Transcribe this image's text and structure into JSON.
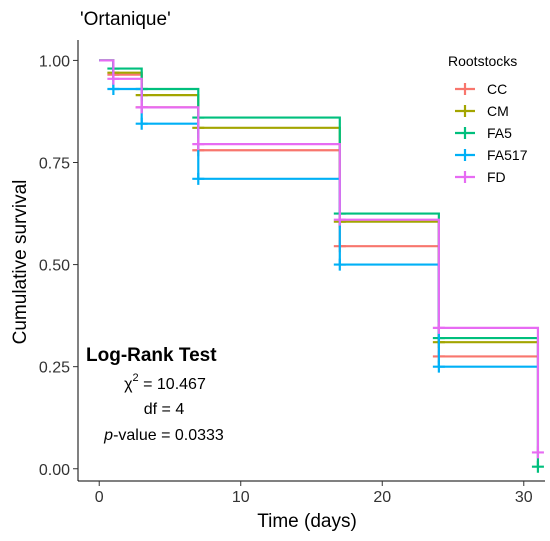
{
  "chart_data": {
    "type": "line",
    "title": "'Ortanique'",
    "xlabel": "Time (days)",
    "ylabel": "Cumulative survival",
    "xlim": [
      -1.5,
      31.5
    ],
    "ylim": [
      -0.03,
      1.05
    ],
    "x_ticks": [
      0,
      10,
      20,
      30
    ],
    "x_tick_labels": [
      "0",
      "10",
      "20",
      "30"
    ],
    "y_ticks": [
      0,
      0.25,
      0.5,
      0.75,
      1.0
    ],
    "y_tick_labels": [
      "0.00",
      "0.25",
      "0.50",
      "0.75",
      "1.00"
    ],
    "grid": false,
    "legend": {
      "title": "Rootstocks",
      "position": "top-right"
    },
    "series": [
      {
        "name": "CC",
        "color": "#F8766D",
        "steps": [
          [
            0,
            1.0
          ],
          [
            1,
            0.965
          ],
          [
            3,
            0.885
          ],
          [
            7,
            0.78
          ],
          [
            17,
            0.545
          ],
          [
            24,
            0.275
          ],
          [
            31,
            0.275
          ]
        ],
        "censor": [
          [
            1,
            0.965
          ],
          [
            3,
            0.885
          ],
          [
            7,
            0.78
          ],
          [
            17,
            0.545
          ],
          [
            24,
            0.275
          ]
        ]
      },
      {
        "name": "CM",
        "color": "#A3A500",
        "steps": [
          [
            0,
            1.0
          ],
          [
            1,
            0.97
          ],
          [
            3,
            0.915
          ],
          [
            7,
            0.835
          ],
          [
            17,
            0.605
          ],
          [
            24,
            0.31
          ],
          [
            31,
            0.31
          ]
        ],
        "censor": [
          [
            1,
            0.97
          ],
          [
            3,
            0.915
          ],
          [
            7,
            0.835
          ],
          [
            17,
            0.605
          ],
          [
            24,
            0.31
          ]
        ]
      },
      {
        "name": "FA5",
        "color": "#00BF7D",
        "steps": [
          [
            0,
            1.0
          ],
          [
            1,
            0.98
          ],
          [
            3,
            0.93
          ],
          [
            7,
            0.86
          ],
          [
            17,
            0.625
          ],
          [
            24,
            0.32
          ],
          [
            31,
            0.005
          ]
        ],
        "censor": [
          [
            1,
            0.98
          ],
          [
            3,
            0.93
          ],
          [
            7,
            0.86
          ],
          [
            17,
            0.625
          ],
          [
            24,
            0.32
          ],
          [
            31,
            0.005
          ]
        ]
      },
      {
        "name": "FA517",
        "color": "#00B0F6",
        "steps": [
          [
            0,
            1.0
          ],
          [
            1,
            0.93
          ],
          [
            3,
            0.845
          ],
          [
            7,
            0.71
          ],
          [
            17,
            0.5
          ],
          [
            24,
            0.25
          ],
          [
            31,
            0.25
          ]
        ],
        "censor": [
          [
            1,
            0.93
          ],
          [
            3,
            0.845
          ],
          [
            7,
            0.71
          ],
          [
            17,
            0.5
          ],
          [
            24,
            0.25
          ]
        ]
      },
      {
        "name": "FD",
        "color": "#E76BF3",
        "steps": [
          [
            0,
            1.0
          ],
          [
            1,
            0.955
          ],
          [
            3,
            0.885
          ],
          [
            7,
            0.795
          ],
          [
            17,
            0.61
          ],
          [
            24,
            0.345
          ],
          [
            31,
            0.04
          ]
        ],
        "censor": [
          [
            1,
            0.955
          ],
          [
            3,
            0.885
          ],
          [
            7,
            0.795
          ],
          [
            17,
            0.61
          ],
          [
            24,
            0.345
          ],
          [
            31,
            0.04
          ]
        ]
      }
    ],
    "annotation": {
      "heading": "Log-Rank Test",
      "chi_symbol": "χ",
      "chi_sup": "2",
      "chi_value": " = 10.467",
      "df": "df = 4",
      "p_italic": "p",
      "p_rest": "-value = 0.0333"
    }
  }
}
